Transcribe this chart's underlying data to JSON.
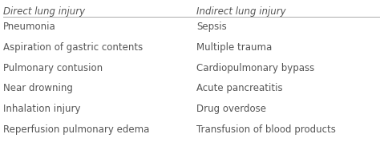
{
  "header_left": "Direct lung injury",
  "header_right": "Indirect lung injury",
  "rows_left": [
    "Pneumonia",
    "Aspiration of gastric contents",
    "Pulmonary contusion",
    "Near drowning",
    "Inhalation injury",
    "Reperfusion pulmonary edema"
  ],
  "rows_right": [
    "Sepsis",
    "Multiple trauma",
    "Cardiopulmonary bypass",
    "Acute pancreatitis",
    "Drug overdose",
    "Transfusion of blood products"
  ],
  "bg_color": "#ffffff",
  "text_color": "#555555",
  "header_color": "#555555",
  "font_size": 8.5,
  "header_font_size": 8.5,
  "fig_width": 4.74,
  "fig_height": 1.83,
  "dpi": 100
}
